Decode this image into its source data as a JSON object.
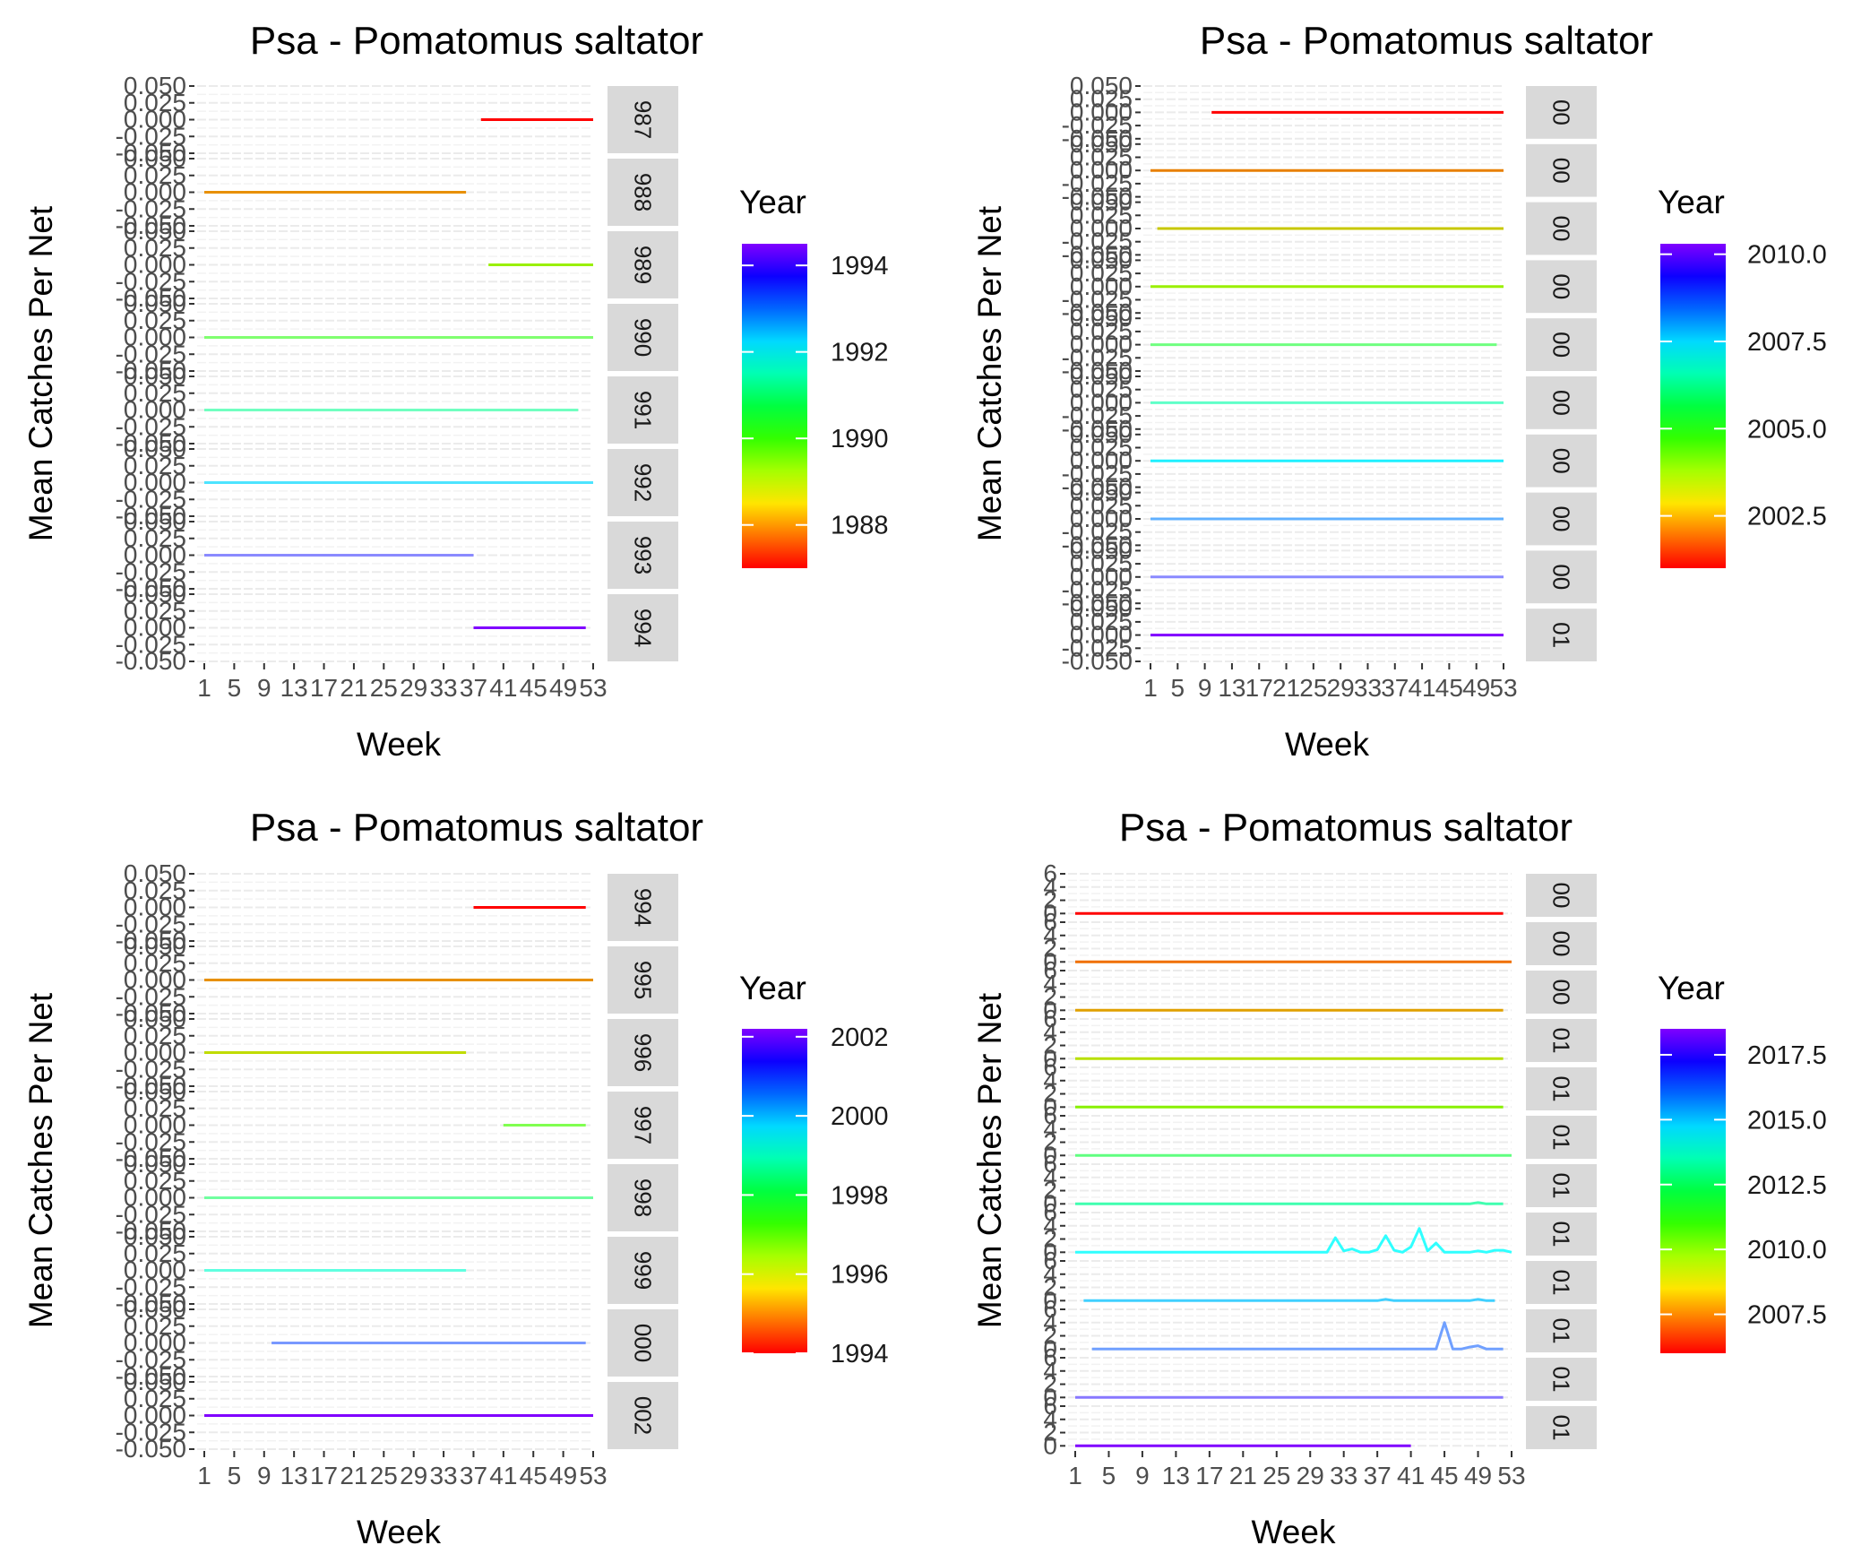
{
  "chart_data": [
    {
      "type": "line",
      "title": "Psa - Pomatomus saltator",
      "xlabel": "Week",
      "ylabel": "Mean Catches Per Net",
      "x_ticks": [
        "1",
        "5",
        "9",
        "13",
        "17",
        "21",
        "25",
        "29",
        "33",
        "37",
        "41",
        "45",
        "49",
        "53"
      ],
      "xlim": [
        1,
        53
      ],
      "facet_y_ticks": [
        "-0.050",
        "-0.025",
        "0.000",
        "0.025",
        "0.050"
      ],
      "facet_ylim": [
        -0.05,
        0.05
      ],
      "legend": {
        "title": "Year",
        "range": [
          1987,
          1994.5
        ],
        "labels": [
          "1994",
          "1992",
          "1990",
          "1988"
        ],
        "label_values": [
          1994,
          1992,
          1990,
          1988
        ]
      },
      "series": [
        {
          "strip": "987",
          "year": 1987,
          "color": "#FF0000",
          "x": [
            38,
            53
          ],
          "y": [
            0,
            0
          ]
        },
        {
          "strip": "988",
          "year": 1988,
          "color": "#E89000",
          "x": [
            1,
            36
          ],
          "y": [
            0,
            0
          ]
        },
        {
          "strip": "989",
          "year": 1989,
          "color": "#9AF000",
          "x": [
            39,
            53
          ],
          "y": [
            0,
            0
          ]
        },
        {
          "strip": "990",
          "year": 1990,
          "color": "#80FF70",
          "x": [
            1,
            53
          ],
          "y": [
            0,
            0
          ]
        },
        {
          "strip": "991",
          "year": 1991,
          "color": "#70FFC0",
          "x": [
            1,
            51
          ],
          "y": [
            0,
            0
          ]
        },
        {
          "strip": "992",
          "year": 1992,
          "color": "#4DE4FF",
          "x": [
            1,
            53
          ],
          "y": [
            0,
            0
          ]
        },
        {
          "strip": "993",
          "year": 1993,
          "color": "#8A8AFF",
          "x": [
            1,
            37
          ],
          "y": [
            0,
            0
          ]
        },
        {
          "strip": "994",
          "year": 1994,
          "color": "#8000FF",
          "x": [
            37,
            52
          ],
          "y": [
            0,
            0
          ]
        }
      ]
    },
    {
      "type": "line",
      "title": "Psa - Pomatomus saltator",
      "xlabel": "Week",
      "ylabel": "Mean Catches Per Net",
      "x_ticks": [
        "1",
        "5",
        "9",
        "13",
        "17",
        "21",
        "25",
        "29",
        "33",
        "37",
        "41",
        "45",
        "49",
        "53"
      ],
      "xlim": [
        1,
        53
      ],
      "facet_y_ticks": [
        "-0.050",
        "-0.025",
        "0.000",
        "0.025",
        "0.050"
      ],
      "facet_ylim": [
        -0.05,
        0.05
      ],
      "legend": {
        "title": "Year",
        "range": [
          2001,
          2010.3
        ],
        "labels": [
          "2010.0",
          "2007.5",
          "2005.0",
          "2002.5"
        ],
        "label_values": [
          2010.0,
          2007.5,
          2005.0,
          2002.5
        ]
      },
      "series": [
        {
          "strip": "00",
          "year": 2001,
          "color": "#FF0000",
          "x": [
            10,
            53
          ],
          "y": [
            0,
            0
          ]
        },
        {
          "strip": "00",
          "year": 2002,
          "color": "#E88000",
          "x": [
            1,
            53
          ],
          "y": [
            0,
            0
          ]
        },
        {
          "strip": "00",
          "year": 2003,
          "color": "#C8C800",
          "x": [
            2,
            53
          ],
          "y": [
            0,
            0
          ]
        },
        {
          "strip": "00",
          "year": 2004,
          "color": "#9AF000",
          "x": [
            1,
            53
          ],
          "y": [
            0,
            0
          ]
        },
        {
          "strip": "00",
          "year": 2005,
          "color": "#70FF80",
          "x": [
            1,
            52
          ],
          "y": [
            0,
            0
          ]
        },
        {
          "strip": "00",
          "year": 2006,
          "color": "#60FFC8",
          "x": [
            1,
            53
          ],
          "y": [
            0,
            0
          ]
        },
        {
          "strip": "00",
          "year": 2007,
          "color": "#20F0FF",
          "x": [
            1,
            53
          ],
          "y": [
            0,
            0
          ]
        },
        {
          "strip": "00",
          "year": 2008,
          "color": "#60B0FF",
          "x": [
            1,
            53
          ],
          "y": [
            0,
            0
          ]
        },
        {
          "strip": "00",
          "year": 2009,
          "color": "#8A8AFF",
          "x": [
            1,
            53
          ],
          "y": [
            0,
            0
          ]
        },
        {
          "strip": "01",
          "year": 2010,
          "color": "#8000FF",
          "x": [
            1,
            53
          ],
          "y": [
            0,
            0
          ]
        }
      ]
    },
    {
      "type": "line",
      "title": "Psa - Pomatomus saltator",
      "xlabel": "Week",
      "ylabel": "Mean Catches Per Net",
      "x_ticks": [
        "1",
        "5",
        "9",
        "13",
        "17",
        "21",
        "25",
        "29",
        "33",
        "37",
        "41",
        "45",
        "49",
        "53"
      ],
      "xlim": [
        1,
        53
      ],
      "facet_y_ticks": [
        "-0.050",
        "-0.025",
        "0.000",
        "0.025",
        "0.050"
      ],
      "facet_ylim": [
        -0.05,
        0.05
      ],
      "legend": {
        "title": "Year",
        "range": [
          1994,
          2002.2
        ],
        "labels": [
          "2002",
          "2000",
          "1998",
          "1996",
          "1994"
        ],
        "label_values": [
          2002,
          2000,
          1998,
          1996,
          1994
        ]
      },
      "series": [
        {
          "strip": "994",
          "year": 1994,
          "color": "#FF0000",
          "x": [
            37,
            52
          ],
          "y": [
            0,
            0
          ]
        },
        {
          "strip": "995",
          "year": 1995,
          "color": "#E89000",
          "x": [
            1,
            53
          ],
          "y": [
            0,
            0
          ]
        },
        {
          "strip": "996",
          "year": 1996,
          "color": "#C0DC00",
          "x": [
            1,
            36
          ],
          "y": [
            0,
            0
          ]
        },
        {
          "strip": "997",
          "year": 1997,
          "color": "#80FF50",
          "x": [
            41,
            52
          ],
          "y": [
            0,
            0
          ]
        },
        {
          "strip": "998",
          "year": 1998,
          "color": "#70FFA0",
          "x": [
            1,
            53
          ],
          "y": [
            0,
            0
          ]
        },
        {
          "strip": "999",
          "year": 1999,
          "color": "#60FFE0",
          "x": [
            1,
            36
          ],
          "y": [
            0,
            0
          ]
        },
        {
          "strip": "000",
          "year": 2000,
          "color": "#7898FF",
          "x": [
            10,
            52
          ],
          "y": [
            0,
            0
          ]
        },
        {
          "strip": "002",
          "year": 2002,
          "color": "#8000FF",
          "x": [
            1,
            53
          ],
          "y": [
            0,
            0
          ]
        }
      ]
    },
    {
      "type": "line",
      "title": "Psa - Pomatomus saltator",
      "xlabel": "Week",
      "ylabel": "Mean Catches Per Net",
      "x_ticks": [
        "1",
        "5",
        "9",
        "13",
        "17",
        "21",
        "25",
        "29",
        "33",
        "37",
        "41",
        "45",
        "49",
        "53"
      ],
      "xlim": [
        1,
        53
      ],
      "facet_y_ticks": [
        "0",
        "2",
        "4",
        "6"
      ],
      "facet_ylim": [
        -0.5,
        6
      ],
      "legend": {
        "title": "Year",
        "range": [
          2006,
          2018.5
        ],
        "labels": [
          "2017.5",
          "2015.0",
          "2012.5",
          "2010.0",
          "2007.5"
        ],
        "label_values": [
          2017.5,
          2015.0,
          2012.5,
          2010.0,
          2007.5
        ]
      },
      "series": [
        {
          "strip": "00",
          "year": 2006,
          "color": "#FF0000",
          "x": [
            1,
            52
          ],
          "y": [
            0,
            0
          ]
        },
        {
          "strip": "00",
          "year": 2007,
          "color": "#F07000",
          "x": [
            1,
            53
          ],
          "y": [
            0,
            0
          ]
        },
        {
          "strip": "00",
          "year": 2008,
          "color": "#E0A000",
          "x": [
            1,
            52
          ],
          "y": [
            0,
            0
          ]
        },
        {
          "strip": "01",
          "year": 2009,
          "color": "#B8E000",
          "x": [
            1,
            52
          ],
          "y": [
            0,
            0
          ]
        },
        {
          "strip": "01",
          "year": 2010,
          "color": "#88F000",
          "x": [
            1,
            52
          ],
          "y": [
            0,
            0
          ]
        },
        {
          "strip": "01",
          "year": 2011,
          "color": "#60FF80",
          "x": [
            1,
            53
          ],
          "y": [
            0,
            0
          ]
        },
        {
          "strip": "01",
          "year": 2012,
          "color": "#40FFB0",
          "x": [
            1,
            48,
            49,
            50,
            52
          ],
          "y": [
            0,
            0,
            0.2,
            0,
            0
          ]
        },
        {
          "strip": "01",
          "year": 2013,
          "color": "#30FFFF",
          "x": [
            1,
            31,
            32,
            33,
            34,
            35,
            36,
            37,
            38,
            39,
            40,
            41,
            42,
            43,
            44,
            45,
            46,
            47,
            48,
            49,
            50,
            51,
            52,
            53
          ],
          "y": [
            0,
            0,
            2.2,
            0.2,
            0.5,
            0,
            0,
            0.4,
            2.5,
            0.3,
            0,
            0.8,
            3.6,
            0.2,
            1.4,
            0,
            0,
            0,
            0,
            0.2,
            0,
            0.3,
            0.3,
            0
          ]
        },
        {
          "strip": "01",
          "year": 2014,
          "color": "#40D0FF",
          "x": [
            2,
            37,
            38,
            39,
            48,
            49,
            50,
            51
          ],
          "y": [
            0,
            0,
            0.2,
            0,
            0,
            0.2,
            0,
            0
          ]
        },
        {
          "strip": "01",
          "year": 2015,
          "color": "#70A0FF",
          "x": [
            3,
            44,
            45,
            46,
            47,
            48,
            49,
            50,
            52
          ],
          "y": [
            0,
            0,
            4.0,
            0,
            0,
            0.3,
            0.5,
            0,
            0
          ]
        },
        {
          "strip": "01",
          "year": 2016,
          "color": "#8878FF",
          "x": [
            1,
            52
          ],
          "y": [
            0,
            0
          ]
        },
        {
          "strip": "01",
          "year": 2017,
          "color": "#8000FF",
          "x": [
            1,
            41
          ],
          "y": [
            0,
            0
          ]
        }
      ]
    }
  ]
}
